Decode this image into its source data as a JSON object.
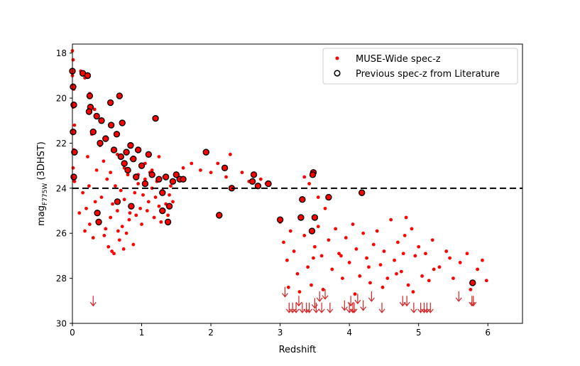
{
  "chart_data": {
    "type": "scatter",
    "xlabel": "Redshift",
    "ylabel_main": "mag",
    "ylabel_sub": "F775W",
    "ylabel_tail": " (3DHST)",
    "xlim": [
      0,
      6.5
    ],
    "ylim": [
      30,
      17.6
    ],
    "y_inverted": true,
    "grid": false,
    "legend_position": "upper-right",
    "x_ticks": [
      0,
      1,
      2,
      3,
      4,
      5,
      6
    ],
    "y_ticks": [
      18,
      20,
      22,
      24,
      26,
      28,
      30
    ],
    "x_tick_labels": [
      "0",
      "1",
      "2",
      "3",
      "4",
      "5",
      "6"
    ],
    "y_tick_labels": [
      "18",
      "20",
      "22",
      "24",
      "26",
      "28",
      "30"
    ],
    "threshold": {
      "y": 24,
      "style": "dashed",
      "color": "#000000"
    },
    "colors": {
      "muse": "#ff0000",
      "literature_edge": "#000000",
      "upper_limit": "#d62020"
    },
    "series": [
      {
        "name": "MUSE-Wide spec-z",
        "marker": "dot",
        "points": [
          [
            0.0,
            17.9
          ],
          [
            0.01,
            18.3
          ],
          [
            0.0,
            19.0
          ],
          [
            0.02,
            19.6
          ],
          [
            0.01,
            20.4
          ],
          [
            0.03,
            21.2
          ],
          [
            0.02,
            22.3
          ],
          [
            0.01,
            23.1
          ],
          [
            0.03,
            23.7
          ],
          [
            0.12,
            18.8
          ],
          [
            0.18,
            19.1
          ],
          [
            0.25,
            19.8
          ],
          [
            0.32,
            20.5
          ],
          [
            0.28,
            21.6
          ],
          [
            0.4,
            22.1
          ],
          [
            0.22,
            22.6
          ],
          [
            0.35,
            23.2
          ],
          [
            0.5,
            23.6
          ],
          [
            0.15,
            24.2
          ],
          [
            0.2,
            24.9
          ],
          [
            0.25,
            25.6
          ],
          [
            0.3,
            26.2
          ],
          [
            0.38,
            25.1
          ],
          [
            0.42,
            24.4
          ],
          [
            0.48,
            25.8
          ],
          [
            0.52,
            26.6
          ],
          [
            0.55,
            25.3
          ],
          [
            0.58,
            24.7
          ],
          [
            0.6,
            26.9
          ],
          [
            0.62,
            23.9
          ],
          [
            0.65,
            25.0
          ],
          [
            0.68,
            26.3
          ],
          [
            0.7,
            24.1
          ],
          [
            0.72,
            25.7
          ],
          [
            0.75,
            24.5
          ],
          [
            0.78,
            26.0
          ],
          [
            0.8,
            23.4
          ],
          [
            0.82,
            25.4
          ],
          [
            0.85,
            24.8
          ],
          [
            0.88,
            26.5
          ],
          [
            0.9,
            24.2
          ],
          [
            0.92,
            25.2
          ],
          [
            0.95,
            23.8
          ],
          [
            0.98,
            24.9
          ],
          [
            1.0,
            25.6
          ],
          [
            1.02,
            24.3
          ],
          [
            1.05,
            23.6
          ],
          [
            1.08,
            25.0
          ],
          [
            1.1,
            24.6
          ],
          [
            1.12,
            23.3
          ],
          [
            1.15,
            24.0
          ],
          [
            1.18,
            25.3
          ],
          [
            1.2,
            24.4
          ],
          [
            1.22,
            23.7
          ],
          [
            1.25,
            24.8
          ],
          [
            1.28,
            25.5
          ],
          [
            1.3,
            24.1
          ],
          [
            1.32,
            23.5
          ],
          [
            1.35,
            24.7
          ],
          [
            1.38,
            25.2
          ],
          [
            1.4,
            24.3
          ],
          [
            1.42,
            23.9
          ],
          [
            1.45,
            24.6
          ],
          [
            0.45,
            22.8
          ],
          [
            0.55,
            23.3
          ],
          [
            0.65,
            22.5
          ],
          [
            0.75,
            23.1
          ],
          [
            0.85,
            22.7
          ],
          [
            0.95,
            23.4
          ],
          [
            1.05,
            22.9
          ],
          [
            1.15,
            23.2
          ],
          [
            1.25,
            22.6
          ],
          [
            0.1,
            25.1
          ],
          [
            0.18,
            25.9
          ],
          [
            0.24,
            23.9
          ],
          [
            0.33,
            24.6
          ],
          [
            0.46,
            26.1
          ],
          [
            0.57,
            26.8
          ],
          [
            0.66,
            25.9
          ],
          [
            0.74,
            26.7
          ],
          [
            0.83,
            25.1
          ],
          [
            1.6,
            23.1
          ],
          [
            1.72,
            22.9
          ],
          [
            1.85,
            23.2
          ],
          [
            2.0,
            23.3
          ],
          [
            2.1,
            22.9
          ],
          [
            2.22,
            23.5
          ],
          [
            2.28,
            22.5
          ],
          [
            2.45,
            23.3
          ],
          [
            2.55,
            23.7
          ],
          [
            2.72,
            23.6
          ],
          [
            2.8,
            23.8
          ],
          [
            3.35,
            23.5
          ],
          [
            3.42,
            23.8
          ],
          [
            3.55,
            24.4
          ],
          [
            3.0,
            25.5
          ],
          [
            3.05,
            26.4
          ],
          [
            3.1,
            27.2
          ],
          [
            3.15,
            25.9
          ],
          [
            3.2,
            26.8
          ],
          [
            3.25,
            27.8
          ],
          [
            3.3,
            25.3
          ],
          [
            3.35,
            26.1
          ],
          [
            3.4,
            27.5
          ],
          [
            3.45,
            28.3
          ],
          [
            3.5,
            26.6
          ],
          [
            3.55,
            25.7
          ],
          [
            3.6,
            27.0
          ],
          [
            3.65,
            24.9
          ],
          [
            3.7,
            26.3
          ],
          [
            3.75,
            27.6
          ],
          [
            3.8,
            25.8
          ],
          [
            3.85,
            26.9
          ],
          [
            3.9,
            28.0
          ],
          [
            3.95,
            26.2
          ],
          [
            4.0,
            27.3
          ],
          [
            4.05,
            25.6
          ],
          [
            4.1,
            26.7
          ],
          [
            4.15,
            27.9
          ],
          [
            4.2,
            26.0
          ],
          [
            4.25,
            27.1
          ],
          [
            4.3,
            28.2
          ],
          [
            4.35,
            26.5
          ],
          [
            4.4,
            25.9
          ],
          [
            4.45,
            27.4
          ],
          [
            4.5,
            26.8
          ],
          [
            4.55,
            28.0
          ],
          [
            4.6,
            25.4
          ],
          [
            4.65,
            27.2
          ],
          [
            4.7,
            26.4
          ],
          [
            4.75,
            27.7
          ],
          [
            4.8,
            26.1
          ],
          [
            4.85,
            28.3
          ],
          [
            4.9,
            25.8
          ],
          [
            4.95,
            27.0
          ],
          [
            5.0,
            26.6
          ],
          [
            5.05,
            27.9
          ],
          [
            5.1,
            26.9
          ],
          [
            5.15,
            28.1
          ],
          [
            5.2,
            26.3
          ],
          [
            5.3,
            27.5
          ],
          [
            5.4,
            26.8
          ],
          [
            5.5,
            28.0
          ],
          [
            5.6,
            27.3
          ],
          [
            5.7,
            26.9
          ],
          [
            5.8,
            28.2
          ],
          [
            5.85,
            27.6
          ],
          [
            5.92,
            27.2
          ],
          [
            5.98,
            28.1
          ],
          [
            3.12,
            28.4
          ],
          [
            3.28,
            28.6
          ],
          [
            3.48,
            27.1
          ],
          [
            3.62,
            28.5
          ],
          [
            3.88,
            27.0
          ],
          [
            4.08,
            28.7
          ],
          [
            4.28,
            27.5
          ],
          [
            4.48,
            28.4
          ],
          [
            4.68,
            27.8
          ],
          [
            4.78,
            26.9
          ],
          [
            4.82,
            25.3
          ],
          [
            4.92,
            28.6
          ],
          [
            5.22,
            27.6
          ],
          [
            5.45,
            27.1
          ],
          [
            5.75,
            28.5
          ]
        ]
      },
      {
        "name": "Previous spec-z from Literature",
        "marker": "circle-open",
        "points": [
          [
            0.0,
            18.8
          ],
          [
            0.01,
            19.5
          ],
          [
            0.02,
            20.3
          ],
          [
            0.01,
            21.5
          ],
          [
            0.03,
            22.4
          ],
          [
            0.02,
            23.5
          ],
          [
            0.15,
            18.9
          ],
          [
            0.22,
            19.0
          ],
          [
            0.25,
            19.9
          ],
          [
            0.26,
            20.4
          ],
          [
            0.24,
            20.6
          ],
          [
            0.3,
            21.5
          ],
          [
            0.35,
            20.8
          ],
          [
            0.42,
            21.0
          ],
          [
            0.4,
            22.0
          ],
          [
            0.48,
            21.8
          ],
          [
            0.55,
            20.2
          ],
          [
            0.56,
            21.2
          ],
          [
            0.6,
            22.3
          ],
          [
            0.64,
            21.6
          ],
          [
            0.68,
            19.9
          ],
          [
            0.7,
            22.6
          ],
          [
            0.72,
            21.1
          ],
          [
            0.75,
            22.9
          ],
          [
            0.78,
            22.4
          ],
          [
            0.8,
            23.2
          ],
          [
            0.84,
            22.1
          ],
          [
            0.88,
            22.7
          ],
          [
            0.92,
            23.5
          ],
          [
            0.95,
            22.3
          ],
          [
            1.0,
            23.0
          ],
          [
            1.05,
            23.8
          ],
          [
            1.1,
            22.5
          ],
          [
            1.15,
            23.4
          ],
          [
            1.2,
            20.9
          ],
          [
            1.25,
            23.6
          ],
          [
            1.3,
            24.2
          ],
          [
            1.35,
            23.5
          ],
          [
            1.4,
            24.8
          ],
          [
            1.45,
            23.7
          ],
          [
            1.5,
            23.4
          ],
          [
            0.36,
            25.1
          ],
          [
            0.38,
            25.5
          ],
          [
            1.38,
            25.5
          ],
          [
            1.3,
            25.0
          ],
          [
            0.65,
            24.6
          ],
          [
            0.85,
            24.8
          ],
          [
            1.55,
            23.6
          ],
          [
            1.6,
            23.6
          ],
          [
            1.93,
            22.4
          ],
          [
            2.12,
            25.2
          ],
          [
            2.2,
            23.1
          ],
          [
            2.3,
            24.0
          ],
          [
            2.6,
            23.7
          ],
          [
            2.62,
            23.4
          ],
          [
            2.68,
            23.9
          ],
          [
            2.83,
            23.8
          ],
          [
            3.0,
            25.4
          ],
          [
            3.3,
            25.3
          ],
          [
            3.32,
            24.5
          ],
          [
            3.48,
            23.3
          ],
          [
            3.47,
            23.4
          ],
          [
            3.5,
            25.3
          ],
          [
            3.46,
            25.9
          ],
          [
            3.7,
            24.4
          ],
          [
            4.18,
            24.2
          ],
          [
            5.78,
            28.2
          ]
        ]
      }
    ],
    "upper_limits": {
      "name": "upper limits",
      "points": [
        [
          0.3,
          29.0
        ],
        [
          3.07,
          28.6
        ],
        [
          3.13,
          29.3
        ],
        [
          3.18,
          29.3
        ],
        [
          3.23,
          29.3
        ],
        [
          3.27,
          29.0
        ],
        [
          3.32,
          29.3
        ],
        [
          3.38,
          29.3
        ],
        [
          3.42,
          29.3
        ],
        [
          3.5,
          29.1
        ],
        [
          3.52,
          29.3
        ],
        [
          3.57,
          28.8
        ],
        [
          3.6,
          29.3
        ],
        [
          3.65,
          28.7
        ],
        [
          3.72,
          29.3
        ],
        [
          3.93,
          29.2
        ],
        [
          4.0,
          29.3
        ],
        [
          4.02,
          29.0
        ],
        [
          4.05,
          29.3
        ],
        [
          4.07,
          29.3
        ],
        [
          4.12,
          28.9
        ],
        [
          4.2,
          29.2
        ],
        [
          4.32,
          28.8
        ],
        [
          4.47,
          29.3
        ],
        [
          4.77,
          29.0
        ],
        [
          4.83,
          29.0
        ],
        [
          4.93,
          29.3
        ],
        [
          5.03,
          29.3
        ],
        [
          5.08,
          29.3
        ],
        [
          5.12,
          29.3
        ],
        [
          5.17,
          29.3
        ],
        [
          5.58,
          28.8
        ],
        [
          5.77,
          29.0
        ],
        [
          5.79,
          29.0
        ]
      ]
    }
  }
}
